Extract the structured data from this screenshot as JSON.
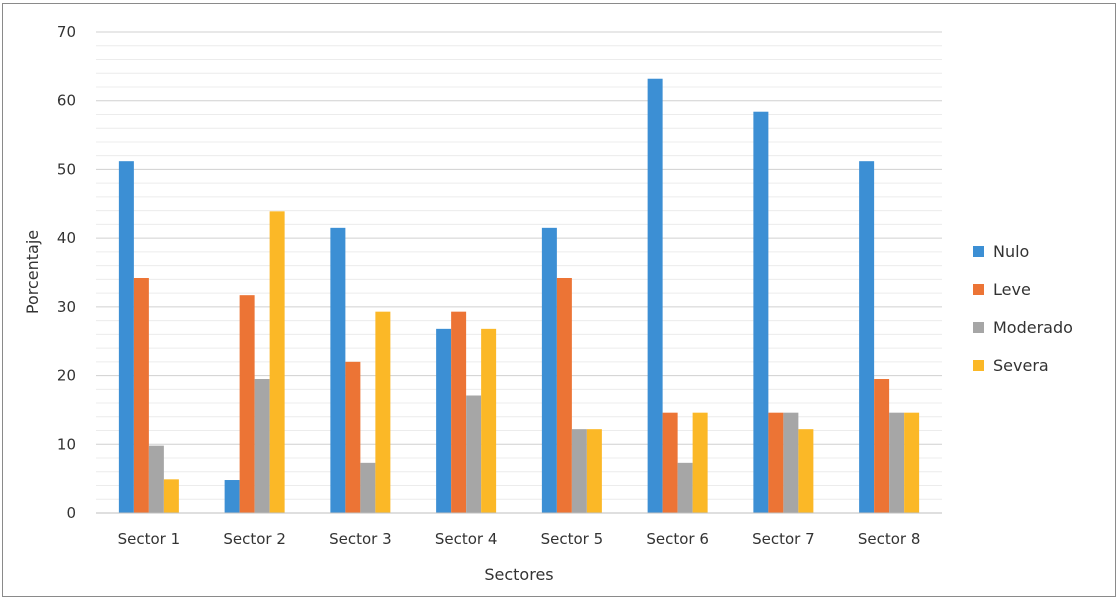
{
  "chart_data": {
    "type": "bar",
    "title": "",
    "xlabel": "Sectores",
    "ylabel": "Porcentaje",
    "ylim": [
      0,
      70
    ],
    "yticks": [
      0,
      10,
      20,
      30,
      40,
      50,
      60,
      70
    ],
    "grid": true,
    "legend_position": "right",
    "categories": [
      "Sector 1",
      "Sector 2",
      "Sector 3",
      "Sector 4",
      "Sector 5",
      "Sector 6",
      "Sector 7",
      "Sector 8"
    ],
    "series": [
      {
        "name": "Nulo",
        "color": "#3c8fd4",
        "values": [
          51.2,
          4.8,
          41.5,
          26.8,
          41.5,
          63.2,
          58.4,
          51.2
        ]
      },
      {
        "name": "Leve",
        "color": "#ec7435",
        "values": [
          34.2,
          31.7,
          22.0,
          29.3,
          34.2,
          14.6,
          14.6,
          19.5
        ]
      },
      {
        "name": "Moderado",
        "color": "#a6a6a6",
        "values": [
          9.8,
          19.5,
          7.3,
          17.1,
          12.2,
          7.3,
          14.6,
          14.6
        ]
      },
      {
        "name": "Severa",
        "color": "#fbb827",
        "values": [
          4.9,
          43.9,
          29.3,
          26.8,
          12.2,
          14.6,
          12.2,
          14.6
        ]
      }
    ]
  }
}
